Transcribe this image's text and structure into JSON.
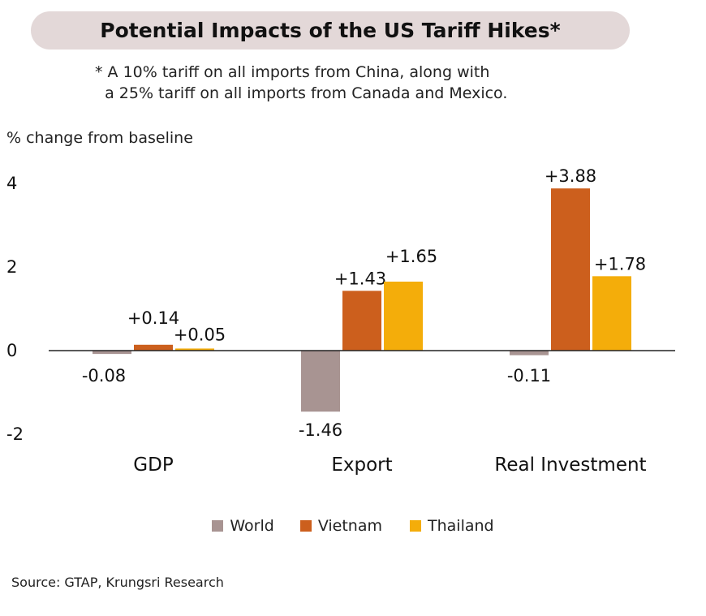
{
  "title": "Potential Impacts of the US Tariff Hikes*",
  "subtitle": "* A 10% tariff on all imports from China, along with\n  a 25% tariff on all imports from Canada and Mexico.",
  "source": "Source: GTAP, Krungsri Research",
  "chart_data": {
    "type": "bar",
    "title": "Potential Impacts of the US Tariff Hikes*",
    "ylabel": "% change from baseline",
    "xlabel": "",
    "categories": [
      "GDP",
      "Export",
      "Real Investment"
    ],
    "ylim": [
      -2,
      4
    ],
    "yticks": [
      4,
      2,
      0,
      -2
    ],
    "grid": false,
    "legend_position": "bottom",
    "series": [
      {
        "name": "World",
        "color": "#a89492",
        "values": [
          -0.08,
          -1.46,
          -0.11
        ],
        "labels": [
          "-0.08",
          "-1.46",
          "-0.11"
        ]
      },
      {
        "name": "Vietnam",
        "color": "#cc5f1d",
        "values": [
          0.14,
          1.43,
          3.88
        ],
        "labels": [
          "+0.14",
          "+1.43",
          "+3.88"
        ]
      },
      {
        "name": "Thailand",
        "color": "#f4ad0a",
        "values": [
          0.05,
          1.65,
          1.78
        ],
        "labels": [
          "+0.05",
          "+1.65",
          "+1.78"
        ]
      }
    ]
  }
}
